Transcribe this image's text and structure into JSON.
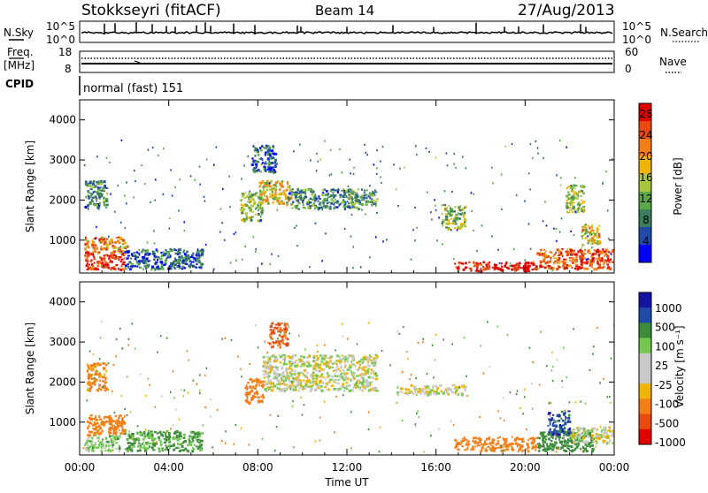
{
  "header": {
    "station": "Stokkseyri (fitACF)",
    "beam": "Beam 14",
    "date": "27/Aug/2013"
  },
  "strips": {
    "nsky": {
      "label": "N.Sky",
      "left_ticks": [
        "10^5",
        "10^0"
      ],
      "right_ticks": [
        "10^5",
        "10^0"
      ],
      "right_label": "N.Search"
    },
    "freq": {
      "label_lines": [
        "Freq.",
        "[MHz]"
      ],
      "left_ticks": [
        "18",
        "8"
      ],
      "right_ticks": [
        "60",
        "0"
      ],
      "right_label": "Nave"
    },
    "cpid": {
      "label": "CPID",
      "value": "normal (fast) 151"
    }
  },
  "colors": {
    "power_scale": [
      "#0000ff",
      "#1f4aa8",
      "#3c7d5b",
      "#5aa84a",
      "#a8c63a",
      "#f0b400",
      "#f57f17",
      "#e84a10",
      "#e00000"
    ],
    "velocity_scale": [
      "#e00000",
      "#e84a10",
      "#f57f17",
      "#f0b400",
      "#c8c8c8",
      "#c8c8c8",
      "#74c850",
      "#3c8c3c",
      "#1f4aa8",
      "#1414a0"
    ],
    "ground_scatter": "#a0a0a0"
  },
  "chart_data": [
    {
      "type": "heatmap",
      "panel": "power",
      "ylabel": "Slant Range [km]",
      "yticks": [
        "1000",
        "2000",
        "3000",
        "4000"
      ],
      "ylim": [
        180,
        4500
      ],
      "xticks": [
        "00:00",
        "04:00",
        "08:00",
        "12:00",
        "16:00",
        "20:00",
        "00:00"
      ],
      "xlim_hours": [
        0,
        24
      ],
      "colorbar": {
        "label": "Power [dB]",
        "ticks": [
          "28",
          "24",
          "20",
          "16",
          "12",
          "8",
          "4"
        ],
        "range": [
          0,
          30
        ]
      },
      "regions": [
        {
          "t": [
            0.2,
            2.0
          ],
          "r": [
            280,
            700
          ],
          "v": 27
        },
        {
          "t": [
            0.2,
            2.1
          ],
          "r": [
            700,
            1100
          ],
          "v": 22
        },
        {
          "t": [
            0.2,
            1.2
          ],
          "r": [
            1800,
            2500
          ],
          "v": 9
        },
        {
          "t": [
            2.0,
            5.5
          ],
          "r": [
            300,
            800
          ],
          "v": 6
        },
        {
          "t": [
            7.2,
            8.2
          ],
          "r": [
            1500,
            2200
          ],
          "v": 13
        },
        {
          "t": [
            8.0,
            9.5
          ],
          "r": [
            1900,
            2500
          ],
          "v": 17
        },
        {
          "t": [
            9.3,
            12.5
          ],
          "r": [
            1800,
            2300
          ],
          "v": 9
        },
        {
          "t": [
            12.0,
            13.3
          ],
          "r": [
            1900,
            2300
          ],
          "v": 11
        },
        {
          "t": [
            7.7,
            8.8
          ],
          "r": [
            2700,
            3400
          ],
          "v": 6
        },
        {
          "t": [
            16.2,
            17.3
          ],
          "r": [
            1300,
            1900
          ],
          "v": 13
        },
        {
          "t": [
            16.8,
            20.5
          ],
          "r": [
            250,
            480
          ],
          "v": 29
        },
        {
          "t": [
            20.5,
            23.9
          ],
          "r": [
            300,
            800
          ],
          "v": 25
        },
        {
          "t": [
            21.8,
            22.6
          ],
          "r": [
            1700,
            2400
          ],
          "v": 14
        },
        {
          "t": [
            22.5,
            23.3
          ],
          "r": [
            900,
            1400
          ],
          "v": 18
        }
      ]
    },
    {
      "type": "heatmap",
      "panel": "velocity",
      "ylabel": "Slant Range [km]",
      "yticks": [
        "1000",
        "2000",
        "3000",
        "4000"
      ],
      "ylim": [
        180,
        4500
      ],
      "xticks": [
        "00:00",
        "04:00",
        "08:00",
        "12:00",
        "16:00",
        "20:00",
        "00:00"
      ],
      "xlabel": "Time UT",
      "xlim_hours": [
        0,
        24
      ],
      "colorbar": {
        "label": "Velocity [m s⁻¹]",
        "ticks": [
          "1000",
          "500",
          "100",
          "25",
          "-25",
          "-100",
          "-500",
          "-1000"
        ],
        "range": [
          -1000,
          1000
        ]
      },
      "regions": [
        {
          "t": [
            0.2,
            1.8
          ],
          "r": [
            300,
            700
          ],
          "v": 60
        },
        {
          "t": [
            0.3,
            2.0
          ],
          "r": [
            700,
            1200
          ],
          "v": -250
        },
        {
          "t": [
            0.3,
            1.2
          ],
          "r": [
            1800,
            2500
          ],
          "v": -150
        },
        {
          "t": [
            2.0,
            5.5
          ],
          "r": [
            300,
            800
          ],
          "v": 120
        },
        {
          "t": [
            7.4,
            8.2
          ],
          "r": [
            1500,
            2100
          ],
          "v": -300
        },
        {
          "t": [
            8.2,
            13.3
          ],
          "r": [
            1800,
            2700
          ],
          "v": 0
        },
        {
          "t": [
            8.5,
            9.3
          ],
          "r": [
            2900,
            3500
          ],
          "v": -600
        },
        {
          "t": [
            14.2,
            17.3
          ],
          "r": [
            1700,
            1950
          ],
          "v": 0
        },
        {
          "t": [
            16.8,
            20.5
          ],
          "r": [
            300,
            650
          ],
          "v": -300
        },
        {
          "t": [
            20.5,
            23.0
          ],
          "r": [
            300,
            800
          ],
          "v": 300
        },
        {
          "t": [
            21.0,
            22.0
          ],
          "r": [
            700,
            1300
          ],
          "v": 800
        },
        {
          "t": [
            22.0,
            23.9
          ],
          "r": [
            500,
            900
          ],
          "v": 0
        }
      ]
    }
  ],
  "axes": {
    "xlabel": "Time UT"
  }
}
